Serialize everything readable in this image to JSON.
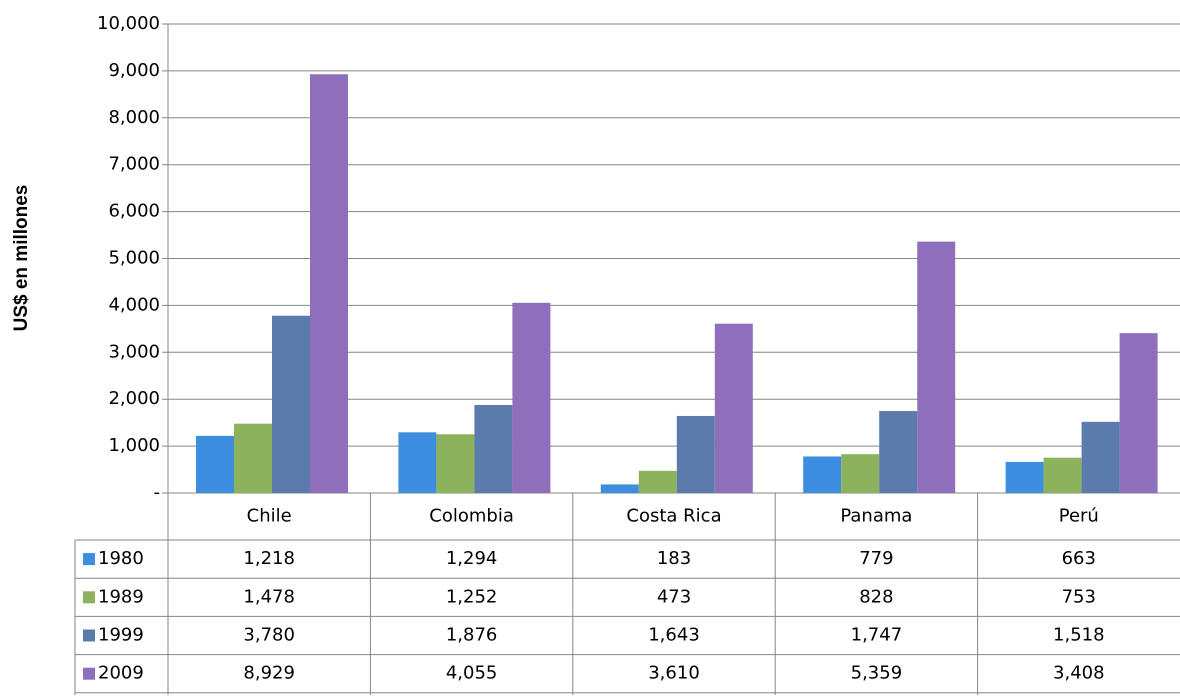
{
  "chart_data": {
    "type": "bar",
    "y_label": "US$ en millones",
    "categories": [
      "Chile",
      "Colombia",
      "Costa Rica",
      "Panama",
      "Perú"
    ],
    "series": [
      {
        "name": "1980",
        "color": "#3d8ee0",
        "values": [
          1218,
          1294,
          183,
          779,
          663
        ],
        "value_labels": [
          "1,218",
          "1,294",
          "183",
          "779",
          "663"
        ]
      },
      {
        "name": "1989",
        "color": "#8db25e",
        "values": [
          1478,
          1252,
          473,
          828,
          753
        ],
        "value_labels": [
          "1,478",
          "1,252",
          "473",
          "828",
          "753"
        ]
      },
      {
        "name": "1999",
        "color": "#5a7bac",
        "values": [
          3780,
          1876,
          1643,
          1747,
          1518
        ],
        "value_labels": [
          "3,780",
          "1,876",
          "1,643",
          "1,747",
          "1,518"
        ]
      },
      {
        "name": "2009",
        "color": "#8f6fbb",
        "values": [
          8929,
          4055,
          3610,
          5359,
          3408
        ],
        "value_labels": [
          "8,929",
          "4,055",
          "3,610",
          "5,359",
          "3,408"
        ]
      }
    ],
    "ylim": [
      0,
      10000
    ],
    "yticks": [
      {
        "value": 0,
        "label": "-"
      },
      {
        "value": 1000,
        "label": "1,000"
      },
      {
        "value": 2000,
        "label": "2,000"
      },
      {
        "value": 3000,
        "label": "3,000"
      },
      {
        "value": 4000,
        "label": "4,000"
      },
      {
        "value": 5000,
        "label": "5,000"
      },
      {
        "value": 6000,
        "label": "6,000"
      },
      {
        "value": 7000,
        "label": "7,000"
      },
      {
        "value": 8000,
        "label": "8,000"
      },
      {
        "value": 9000,
        "label": "9,000"
      },
      {
        "value": 10000,
        "label": "10,000"
      }
    ],
    "grid": true
  }
}
